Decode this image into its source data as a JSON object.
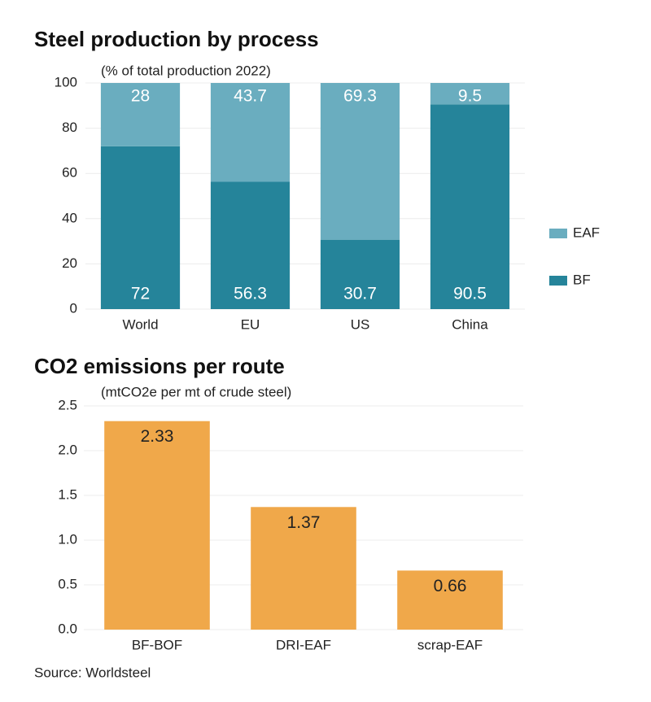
{
  "chart_data": [
    {
      "type": "stacked_bar",
      "title": "Steel production by process",
      "subtitle": "(% of total production 2022)",
      "categories": [
        "World",
        "EU",
        "US",
        "China"
      ],
      "series": [
        {
          "name": "BF",
          "color": "#25849a",
          "values": [
            72,
            56.3,
            30.7,
            90.5
          ]
        },
        {
          "name": "EAF",
          "color": "#6aadbf",
          "values": [
            28,
            43.7,
            69.3,
            9.5
          ]
        }
      ],
      "ylim": [
        0,
        100
      ],
      "yticks": [
        0,
        20,
        40,
        60,
        80,
        100
      ],
      "grid": true,
      "legend": "right"
    },
    {
      "type": "bar",
      "title": "CO2 emissions per route",
      "subtitle": "(mtCO2e per mt of crude steel)",
      "categories": [
        "BF-BOF",
        "DRI-EAF",
        "scrap-EAF"
      ],
      "values": [
        2.33,
        1.37,
        0.66
      ],
      "color": "#f0a84a",
      "ylim": [
        0,
        2.5
      ],
      "yticks": [
        {
          "value": 0,
          "label": "0.0"
        },
        0.5,
        {
          "value": 1,
          "label": "1.0"
        },
        1.5,
        {
          "value": 2,
          "label": "2.0"
        },
        2.5
      ],
      "grid": true
    }
  ],
  "source": "Source: Worldsteel"
}
